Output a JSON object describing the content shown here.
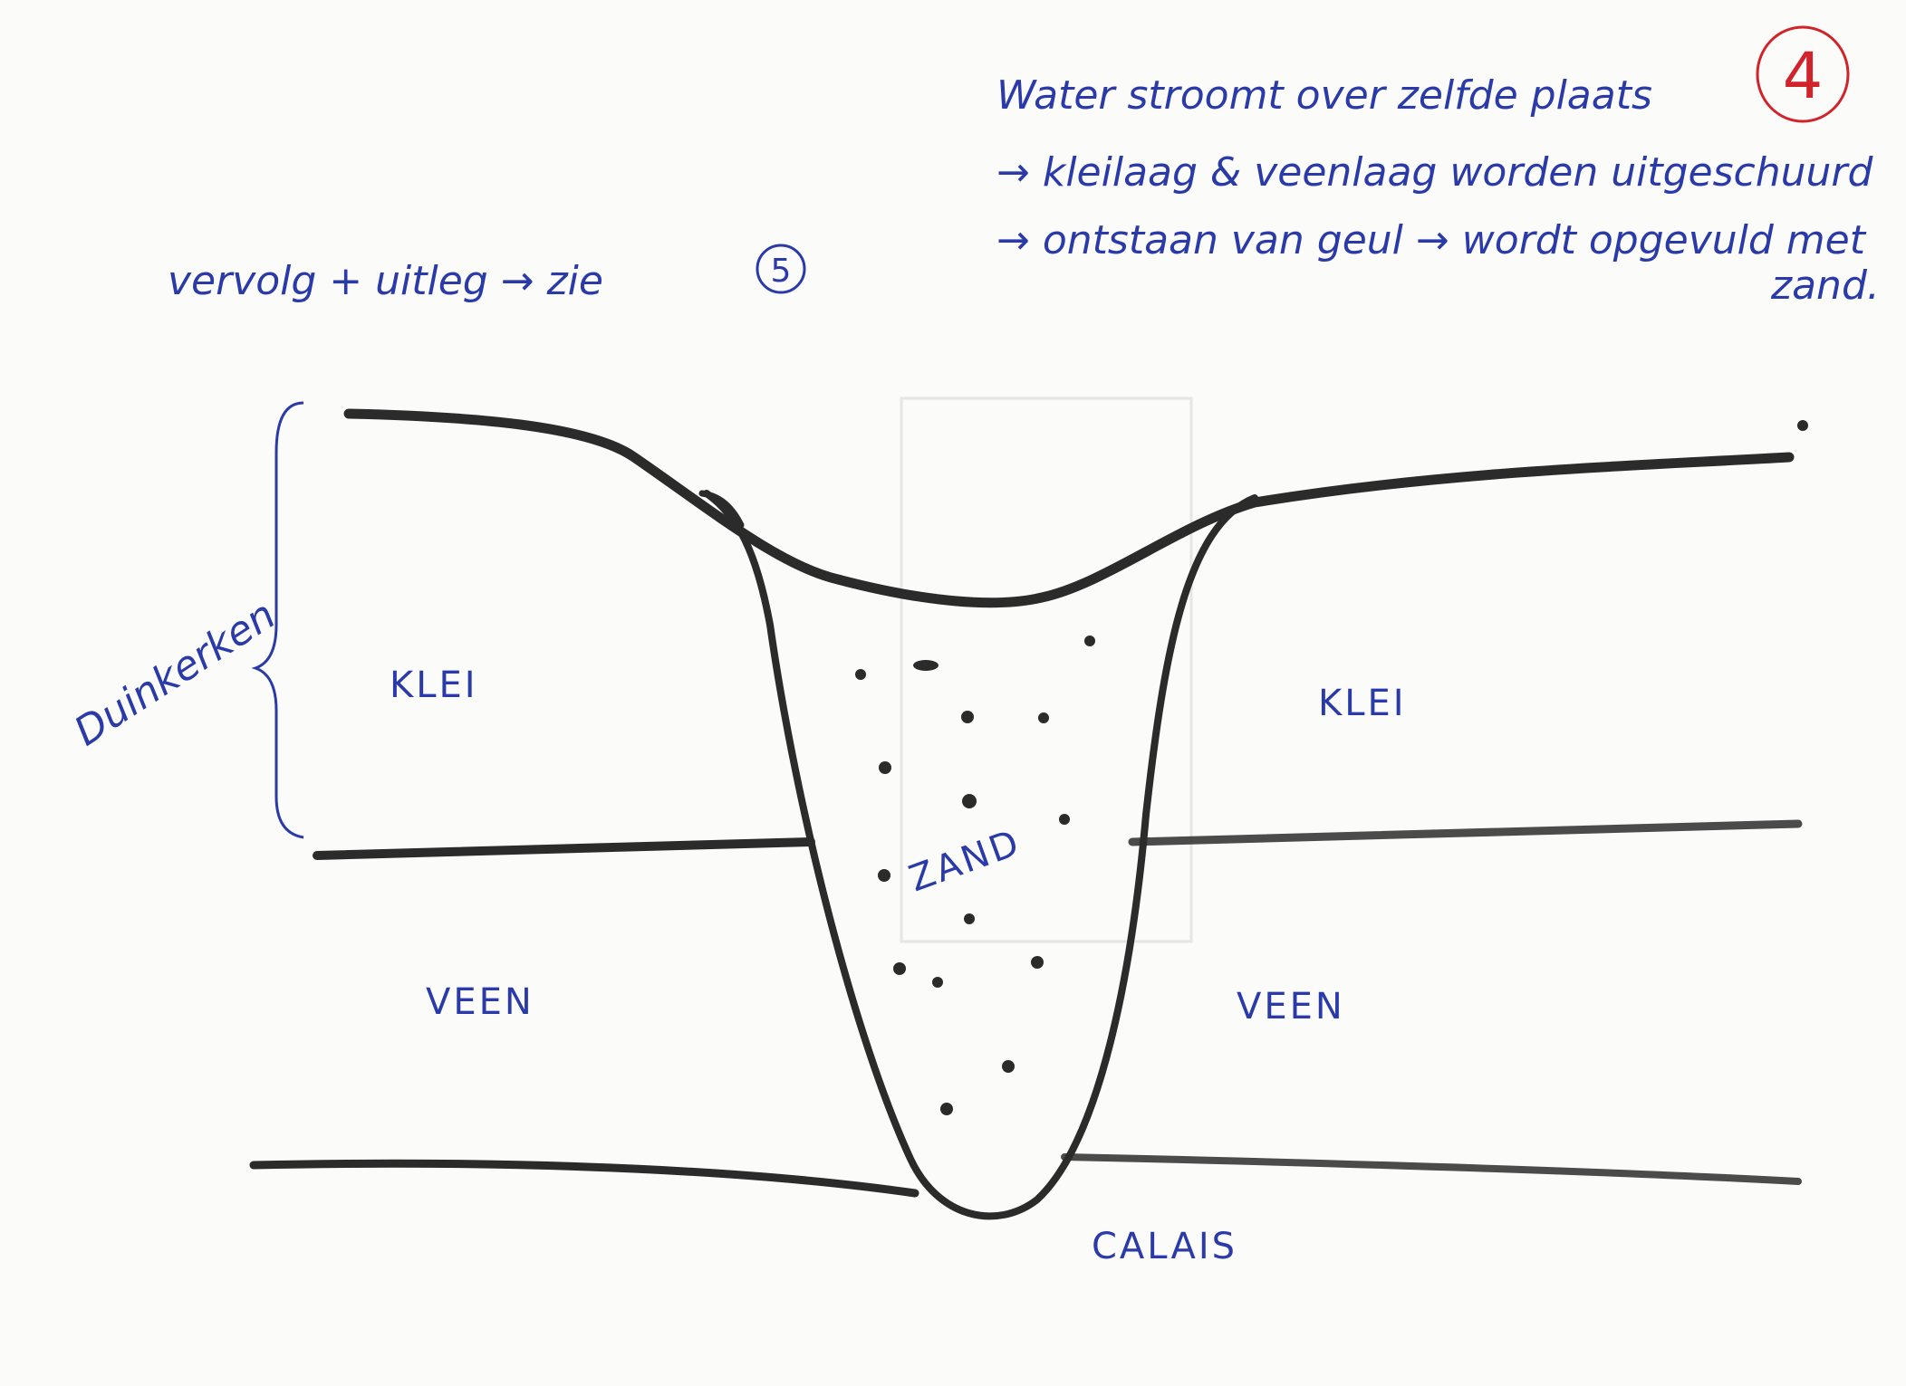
{
  "page_number": "4",
  "notes": [
    "Water stroomt over zelfde plaats",
    "→ kleilaag & veenlaag worden uitgeschuurd",
    "→ ontstaan van geul → wordt opgevuld met",
    "zand."
  ],
  "follow_up": "vervolg + uitleg → zie",
  "follow_up_ref": "5",
  "bracket_label": "Duinkerken",
  "labels": {
    "clay_left": "KLEI",
    "clay_right": "KLEI",
    "peat_left": "VEEN",
    "peat_right": "VEEN",
    "sand": "ZAND",
    "base": "CALAIS"
  },
  "colors": {
    "ink_blue": "#2a3aa8",
    "ink_black": "#2b2b2b",
    "ink_red": "#d1232a",
    "paper": "#fbfbfa"
  }
}
